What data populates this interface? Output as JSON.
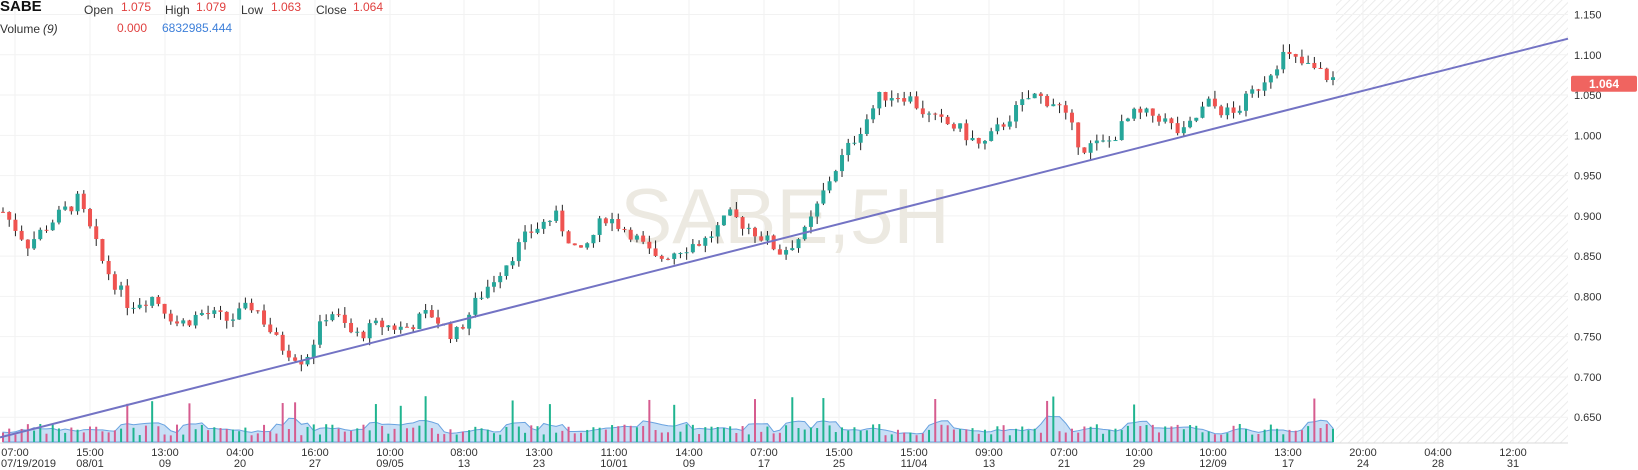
{
  "header": {
    "symbol": "SABE",
    "open_label": "Open",
    "open_value": "1.075",
    "high_label": "High",
    "high_value": "1.079",
    "low_label": "Low",
    "low_value": "1.063",
    "close_label": "Close",
    "close_value": "1.064",
    "volume_label": "Volume",
    "volume_period": "(9)",
    "volume_value": "0.000",
    "volume_ma": "6832985.444"
  },
  "watermark": "SABE,5H",
  "colors": {
    "up": "#26a69a",
    "down": "#ef5350",
    "trendline": "#7373c4",
    "volume_area": "#9bc4ee",
    "price_tag": "#f06460"
  },
  "chart_data": {
    "type": "candlestick",
    "ylim": [
      0.618,
      1.168
    ],
    "y_ticks": [
      "1.150",
      "1.100",
      "1.050",
      "1.000",
      "0.950",
      "0.900",
      "0.850",
      "0.800",
      "0.750",
      "0.700",
      "0.650"
    ],
    "last_price": "1.064",
    "x_tick_labels": [
      {
        "time": "07:00",
        "date": "07/19/2019"
      },
      {
        "time": "15:00",
        "date": "08/01"
      },
      {
        "time": "13:00",
        "date": "09"
      },
      {
        "time": "04:00",
        "date": "20"
      },
      {
        "time": "16:00",
        "date": "27"
      },
      {
        "time": "10:00",
        "date": "09/05"
      },
      {
        "time": "08:00",
        "date": "13"
      },
      {
        "time": "13:00",
        "date": "23"
      },
      {
        "time": "11:00",
        "date": "10/01"
      },
      {
        "time": "14:00",
        "date": "09"
      },
      {
        "time": "07:00",
        "date": "17"
      },
      {
        "time": "15:00",
        "date": "25"
      },
      {
        "time": "15:00",
        "date": "11/04"
      },
      {
        "time": "09:00",
        "date": "13"
      },
      {
        "time": "07:00",
        "date": "21"
      },
      {
        "time": "10:00",
        "date": "29"
      },
      {
        "time": "10:00",
        "date": "12/09"
      },
      {
        "time": "13:00",
        "date": "17"
      },
      {
        "time": "20:00",
        "date": "24"
      },
      {
        "time": "04:00",
        "date": "28"
      },
      {
        "time": "12:00",
        "date": "31"
      }
    ],
    "close_path": [
      0.905,
      0.865,
      0.895,
      0.92,
      0.84,
      0.79,
      0.8,
      0.765,
      0.78,
      0.77,
      0.79,
      0.74,
      0.72,
      0.785,
      0.75,
      0.765,
      0.76,
      0.78,
      0.75,
      0.8,
      0.84,
      0.88,
      0.9,
      0.85,
      0.9,
      0.88,
      0.845,
      0.86,
      0.87,
      0.9,
      0.88,
      0.855,
      0.88,
      0.95,
      1.0,
      1.05,
      1.05,
      1.02,
      1.01,
      0.985,
      1.02,
      1.05,
      1.04,
      0.985,
      0.99,
      1.025,
      1.025,
      1.0,
      1.04,
      1.025,
      1.06,
      1.1,
      1.085,
      1.07
    ],
    "trendline": [
      0.625,
      1.12
    ]
  }
}
